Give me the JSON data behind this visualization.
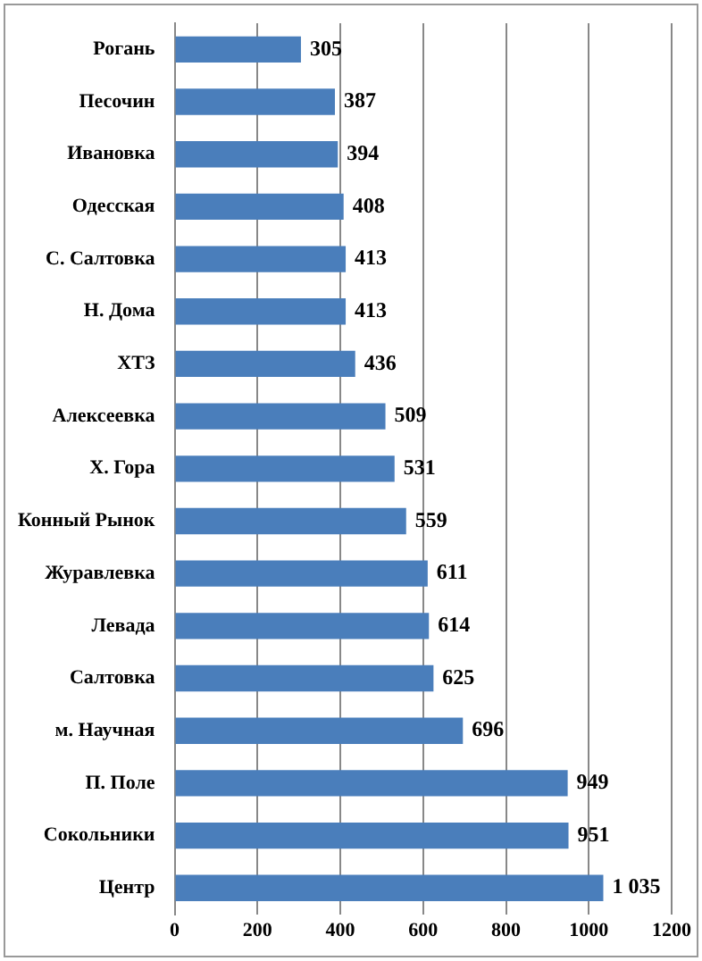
{
  "chart_data": {
    "type": "bar",
    "orientation": "horizontal",
    "categories": [
      "Рогань",
      "Песочин",
      "Ивановка",
      "Одесская",
      "С. Салтовка",
      "Н. Дома",
      "ХТЗ",
      "Алексеевка",
      "Х. Гора",
      "Конный Рынок",
      "Журавлевка",
      "Левада",
      "Салтовка",
      "м. Научная",
      "П. Поле",
      "Сокольники",
      "Центр"
    ],
    "values": [
      305,
      387,
      394,
      408,
      413,
      413,
      436,
      509,
      531,
      559,
      611,
      614,
      625,
      696,
      949,
      951,
      1035
    ],
    "value_labels": [
      "305",
      "387",
      "394",
      "408",
      "413",
      "413",
      "436",
      "509",
      "531",
      "559",
      "611",
      "614",
      "625",
      "696",
      "949",
      "951",
      "1 035"
    ],
    "color": "#4a7ebb",
    "xlim": [
      0,
      1200
    ],
    "xticks": [
      0,
      200,
      400,
      600,
      800,
      1000,
      1200
    ],
    "grid": "x",
    "legend": false
  }
}
